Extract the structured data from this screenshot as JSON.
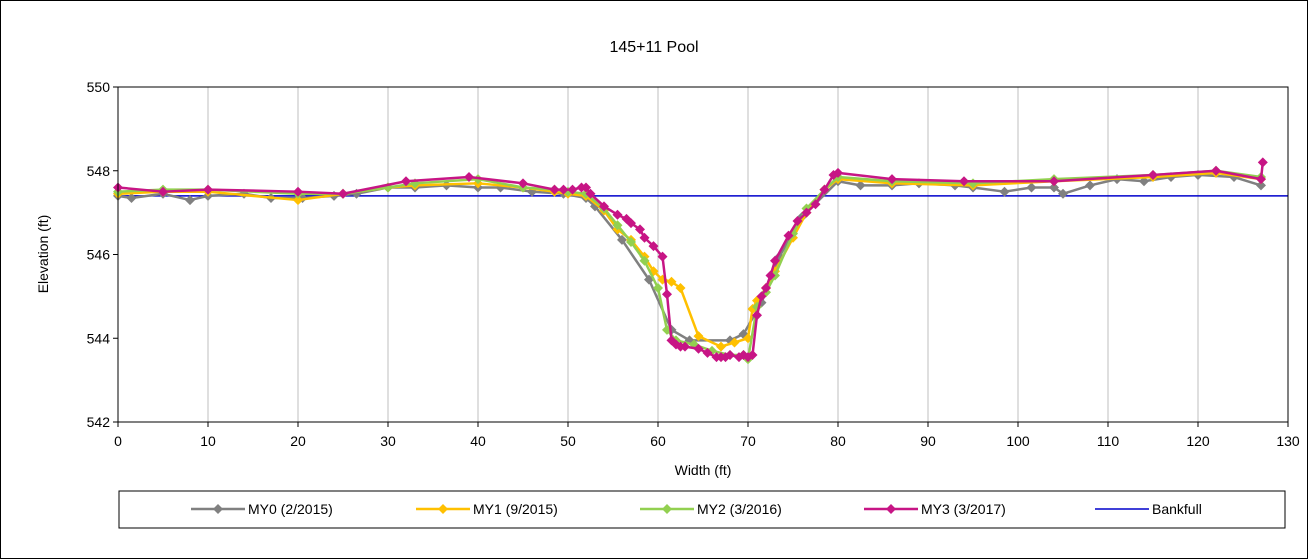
{
  "chart_data": {
    "type": "line",
    "title": "145+11 Pool",
    "xlabel": "Width (ft)",
    "ylabel": "Elevation (ft)",
    "xlim": [
      0,
      130
    ],
    "ylim": [
      542,
      550
    ],
    "xticks": [
      0,
      10,
      20,
      30,
      40,
      50,
      60,
      70,
      80,
      90,
      100,
      110,
      120,
      130
    ],
    "yticks": [
      542,
      544,
      546,
      548,
      550
    ],
    "grid": "vertical",
    "legend": "bottom",
    "series": [
      {
        "name": "MY0 (2/2015)",
        "color": "#808080",
        "marker": "diamond",
        "x": [
          0,
          1.5,
          5,
          8,
          10,
          14,
          17,
          20.5,
          24,
          26.5,
          30,
          33,
          36.5,
          40,
          42.5,
          46,
          49.5,
          52,
          53,
          56,
          59,
          61.5,
          63.5,
          68,
          69.5,
          71.5,
          73.5,
          76,
          80,
          82.5,
          86,
          89,
          93,
          95,
          98.5,
          101.5,
          104,
          105,
          108,
          111,
          114,
          117,
          120,
          124,
          127
        ],
        "y": [
          547.4,
          547.35,
          547.45,
          547.3,
          547.4,
          547.45,
          547.35,
          547.35,
          547.4,
          547.45,
          547.6,
          547.6,
          547.65,
          547.6,
          547.6,
          547.5,
          547.45,
          547.35,
          547.15,
          546.35,
          545.4,
          544.2,
          543.95,
          543.95,
          544.1,
          544.85,
          545.95,
          546.9,
          547.75,
          547.65,
          547.65,
          547.7,
          547.65,
          547.6,
          547.5,
          547.6,
          547.6,
          547.45,
          547.65,
          547.8,
          547.75,
          547.85,
          547.9,
          547.85,
          547.65
        ]
      },
      {
        "name": "MY1 (9/2015)",
        "color": "#FFC000",
        "marker": "diamond",
        "x": [
          0,
          5,
          10,
          20,
          25,
          30,
          33,
          40,
          45,
          48.5,
          50,
          52,
          54,
          55.5,
          57,
          58.5,
          59.5,
          60.5,
          61.5,
          62.5,
          64.5,
          67,
          68.5,
          70,
          70.5,
          71,
          72,
          73,
          75,
          76.5,
          78.5,
          80,
          86,
          95,
          104,
          115,
          122,
          127
        ],
        "y": [
          547.45,
          547.5,
          547.5,
          547.3,
          547.45,
          547.6,
          547.65,
          547.7,
          547.6,
          547.5,
          547.45,
          547.4,
          547.05,
          546.6,
          546.35,
          545.95,
          545.6,
          545.4,
          545.35,
          545.2,
          544.05,
          543.8,
          543.9,
          544,
          544.7,
          544.9,
          545.2,
          545.6,
          546.4,
          547.0,
          547.55,
          547.8,
          547.7,
          547.65,
          547.75,
          547.85,
          547.95,
          547.8
        ]
      },
      {
        "name": "MY2 (3/2016)",
        "color": "#92D050",
        "marker": "diamond",
        "x": [
          0,
          5,
          10,
          20,
          25,
          30,
          33,
          40,
          45,
          48.5,
          50,
          52,
          54,
          55.5,
          57,
          58.5,
          60,
          61,
          62,
          64,
          66,
          68,
          69.5,
          70,
          71,
          72,
          73,
          75,
          76.5,
          78.5,
          80,
          86,
          95,
          104,
          115,
          122,
          127
        ],
        "y": [
          547.5,
          547.55,
          547.55,
          547.45,
          547.45,
          547.6,
          547.7,
          547.8,
          547.6,
          547.55,
          547.5,
          547.45,
          547.1,
          546.7,
          546.3,
          545.85,
          545.2,
          544.2,
          543.95,
          543.85,
          543.7,
          543.6,
          543.6,
          543.5,
          544.75,
          545.1,
          545.5,
          546.5,
          547.1,
          547.55,
          547.85,
          547.75,
          547.7,
          547.8,
          547.9,
          548.0,
          547.85
        ]
      },
      {
        "name": "MY3 (3/2017)",
        "color": "#C71585",
        "marker": "diamond",
        "x": [
          0,
          5,
          10,
          20,
          25,
          32,
          39,
          45,
          48.5,
          49.5,
          50.5,
          51.5,
          52,
          52.5,
          54,
          55.5,
          56.5,
          57,
          58,
          58.5,
          59.5,
          60.5,
          61,
          61.5,
          62,
          62.5,
          63,
          64.5,
          65.5,
          66.5,
          67,
          67.5,
          68,
          69,
          69.5,
          70,
          70.5,
          71,
          71.5,
          72,
          72.5,
          73,
          74.5,
          75.5,
          76.5,
          77.5,
          78.5,
          79.5,
          80,
          86,
          94,
          104,
          115,
          122,
          127,
          127.2
        ],
        "y": [
          547.6,
          547.5,
          547.55,
          547.5,
          547.45,
          547.75,
          547.85,
          547.7,
          547.55,
          547.55,
          547.55,
          547.6,
          547.6,
          547.45,
          547.15,
          546.95,
          546.85,
          546.75,
          546.6,
          546.4,
          546.2,
          545.95,
          545.05,
          543.95,
          543.85,
          543.8,
          543.8,
          543.75,
          543.65,
          543.55,
          543.55,
          543.55,
          543.6,
          543.55,
          543.6,
          543.55,
          543.6,
          544.55,
          545.0,
          545.2,
          545.5,
          545.85,
          546.45,
          546.8,
          547.0,
          547.2,
          547.55,
          547.9,
          547.95,
          547.8,
          547.75,
          547.75,
          547.9,
          548.0,
          547.8,
          548.2
        ]
      },
      {
        "name": "Bankfull",
        "color": "#0000CC",
        "marker": "none",
        "x": [
          0,
          130
        ],
        "y": [
          547.4,
          547.4
        ]
      }
    ]
  }
}
